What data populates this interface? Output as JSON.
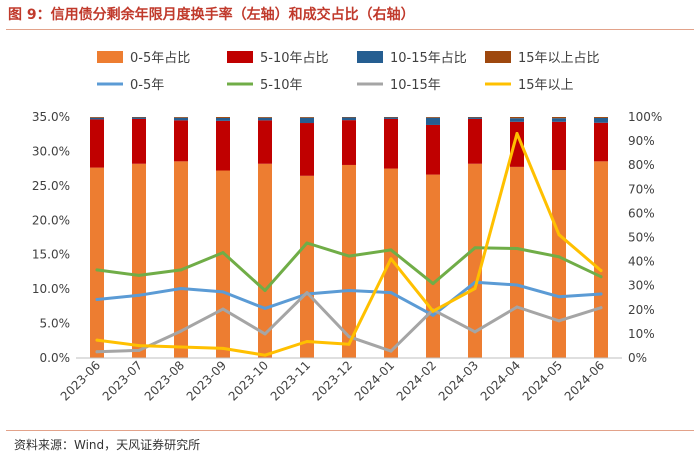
{
  "title": "图 9：信用债分剩余年限月度换手率（左轴）和成交占比（右轴）",
  "source": "资料来源：Wind，天风证券研究所",
  "chart_data": {
    "type": "bar",
    "categories": [
      "2023-06",
      "2023-07",
      "2023-08",
      "2023-09",
      "2023-10",
      "2023-11",
      "2023-12",
      "2024-01",
      "2024-02",
      "2024-03",
      "2024-04",
      "2024-05",
      "2024-06"
    ],
    "bar_series": [
      {
        "name": "0-5年占比",
        "color": "#ed7d31",
        "values": [
          79.0,
          80.6,
          81.6,
          77.8,
          80.6,
          75.6,
          80.1,
          78.6,
          76.1,
          80.6,
          79.3,
          78.0,
          81.6
        ]
      },
      {
        "name": "5-10年占比",
        "color": "#c00000",
        "values": [
          20.0,
          18.6,
          17.0,
          20.6,
          18.0,
          21.9,
          18.6,
          20.6,
          20.6,
          18.6,
          18.7,
          20.0,
          16.0
        ]
      },
      {
        "name": "10-15年占比",
        "color": "#255e91",
        "values": [
          0.7,
          0.6,
          1.1,
          1.2,
          1.1,
          2.2,
          1.1,
          0.6,
          3.0,
          0.6,
          1.5,
          1.5,
          2.0
        ]
      },
      {
        "name": "15年以上占比",
        "color": "#9e480e",
        "values": [
          0.3,
          0.2,
          0.3,
          0.4,
          0.3,
          0.3,
          0.2,
          0.2,
          0.3,
          0.2,
          0.5,
          0.5,
          0.4
        ]
      }
    ],
    "line_series": [
      {
        "name": "0-5年",
        "color": "#5b9bd5",
        "values": [
          8.5,
          9.1,
          10.1,
          9.6,
          7.2,
          9.3,
          9.8,
          9.5,
          6.2,
          11.0,
          10.6,
          8.9,
          9.3
        ]
      },
      {
        "name": "5-10年",
        "color": "#70ad47",
        "values": [
          12.8,
          12.0,
          12.8,
          15.3,
          9.8,
          16.7,
          14.8,
          15.7,
          10.8,
          16.0,
          15.9,
          14.7,
          11.8
        ]
      },
      {
        "name": "10-15年",
        "color": "#a5a5a5",
        "values": [
          0.9,
          1.1,
          3.9,
          7.1,
          3.5,
          9.5,
          3.1,
          1.0,
          7.0,
          3.8,
          7.4,
          5.4,
          7.3
        ]
      },
      {
        "name": "15年以上",
        "color": "#ffc000",
        "values": [
          2.6,
          1.8,
          1.6,
          1.4,
          0.4,
          2.4,
          2.0,
          14.4,
          6.8,
          10.1,
          32.6,
          17.9,
          12.7
        ]
      }
    ],
    "y_left": {
      "min": 0,
      "max": 35,
      "step": 5,
      "ticks": [
        "0.0%",
        "5.0%",
        "10.0%",
        "15.0%",
        "20.0%",
        "25.0%",
        "30.0%",
        "35.0%"
      ]
    },
    "y_right": {
      "min": 0,
      "max": 100,
      "step": 10,
      "ticks": [
        "0%",
        "10%",
        "20%",
        "30%",
        "40%",
        "50%",
        "60%",
        "70%",
        "80%",
        "90%",
        "100%"
      ]
    },
    "bars_axis": "right",
    "lines_axis": "left",
    "legend_position": "top",
    "grid": false
  }
}
